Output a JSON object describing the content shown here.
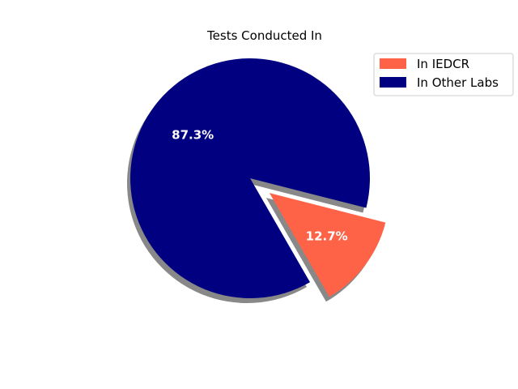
{
  "chart_data": {
    "type": "pie",
    "title": "Tests Conducted In",
    "slices": [
      {
        "label": "In IEDCR",
        "value": 12.7,
        "display": "12.7%",
        "color": "#ff6347",
        "exploded": true
      },
      {
        "label": "In Other Labs",
        "value": 87.3,
        "display": "87.3%",
        "color": "#000080",
        "exploded": false
      }
    ],
    "shadow": true,
    "legend_placement": "top-right"
  }
}
